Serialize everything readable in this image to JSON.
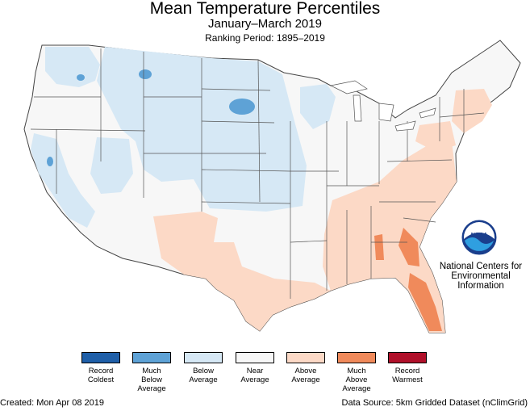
{
  "header": {
    "title": "Mean Temperature Percentiles",
    "subtitle": "January–March 2019",
    "ranking_period": "Ranking Period: 1895–2019"
  },
  "agency": {
    "logo_text": "NOAA",
    "name": "National Centers for Environmental Information"
  },
  "legend": [
    {
      "label": "Record\nColdest",
      "color": "#1f5fa8"
    },
    {
      "label": "Much\nBelow\nAverage",
      "color": "#5ea2d6"
    },
    {
      "label": "Below\nAverage",
      "color": "#d6e8f5"
    },
    {
      "label": "Near\nAverage",
      "color": "#f7f7f7"
    },
    {
      "label": "Above\nAverage",
      "color": "#fcd9c6"
    },
    {
      "label": "Much\nAbove\nAverage",
      "color": "#f08a5b"
    },
    {
      "label": "Record\nWarmest",
      "color": "#b0102a"
    }
  ],
  "footer": {
    "created": "Created: Mon Apr 08 2019",
    "source": "Data Source: 5km Gridded Dataset (nClimGrid)"
  }
}
